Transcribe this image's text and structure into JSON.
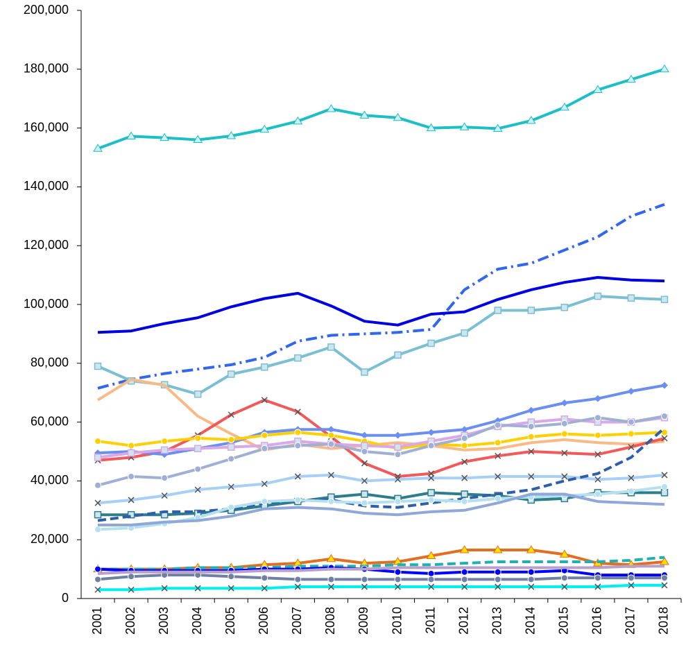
{
  "chart_data": {
    "type": "line",
    "categories": [
      "2001",
      "2002",
      "2003",
      "2004",
      "2005",
      "2006",
      "2007",
      "2008",
      "2009",
      "2010",
      "2011",
      "2012",
      "2013",
      "2014",
      "2015",
      "2016",
      "2017",
      "2018"
    ],
    "ylim": [
      0,
      200000
    ],
    "yticks": [
      0,
      {
        "value": 20000,
        "label": "20,000"
      },
      {
        "value": 40000,
        "label": "40,000"
      },
      {
        "value": 60000,
        "label": "60,000"
      },
      {
        "value": 80000,
        "label": "80,000"
      },
      {
        "value": 100000,
        "label": "100,000"
      },
      {
        "value": 120000,
        "label": "120,000"
      },
      {
        "value": 140000,
        "label": "140,000"
      },
      {
        "value": 160000,
        "label": "160,000"
      },
      {
        "value": 180000,
        "label": "180,000"
      },
      {
        "value": 200000,
        "label": "200,000"
      }
    ],
    "grid": false,
    "series": [
      {
        "color": "#1CBFC6",
        "marker": "triangle",
        "dash": "solid",
        "values": [
          153000,
          157200,
          156700,
          156000,
          157300,
          159500,
          162300,
          166500,
          164300,
          163500,
          160000,
          160300,
          159800,
          162500,
          167000,
          173000,
          176500,
          180000
        ]
      },
      {
        "color": "#3366EE",
        "marker": "none",
        "dash": "dashdot",
        "values": [
          71500,
          74500,
          76500,
          78000,
          79500,
          82000,
          87500,
          89500,
          90000,
          90500,
          91500,
          105000,
          112000,
          114000,
          118500,
          123000,
          130000,
          134000
        ]
      },
      {
        "color": "#0000E0",
        "marker": "none",
        "dash": "solid",
        "values": [
          90500,
          91000,
          93500,
          95500,
          99200,
          102000,
          103800,
          99500,
          94300,
          93000,
          96700,
          97500,
          101700,
          105000,
          107500,
          109200,
          108300,
          108000
        ]
      },
      {
        "color": "#7BBFD2",
        "marker": "square",
        "dash": "solid",
        "values": [
          79000,
          74000,
          72700,
          69500,
          76300,
          78700,
          81800,
          85500,
          77000,
          82800,
          86800,
          90300,
          98000,
          98000,
          99000,
          102800,
          102200,
          101700
        ]
      },
      {
        "color": "#F8BB88",
        "marker": "none",
        "dash": "solid",
        "values": [
          67500,
          74500,
          72500,
          62000,
          56000,
          50500,
          52500,
          51000,
          52000,
          53000,
          52000,
          50500,
          51000,
          53000,
          54000,
          53000,
          52500,
          53500
        ]
      },
      {
        "color": "#F05A5A",
        "marker": "x",
        "dash": "solid",
        "values": [
          47000,
          48000,
          50000,
          55500,
          62500,
          67500,
          63500,
          55000,
          46000,
          41500,
          42500,
          46500,
          48500,
          50000,
          49500,
          49000,
          51500,
          54500
        ]
      },
      {
        "color": "#6A8FF0",
        "marker": "diamond",
        "dash": "solid",
        "values": [
          49500,
          50000,
          49000,
          51000,
          53000,
          56500,
          57500,
          57500,
          55500,
          55500,
          56500,
          57500,
          60500,
          64000,
          66500,
          68000,
          70500,
          72500
        ]
      },
      {
        "color": "#FFD000",
        "marker": "circle",
        "dash": "solid",
        "values": [
          53500,
          52000,
          53500,
          54500,
          54000,
          55500,
          56500,
          55500,
          53500,
          51000,
          52500,
          52000,
          53000,
          55000,
          56000,
          55500,
          56000,
          56500
        ]
      },
      {
        "color": "#D9A8E6",
        "marker": "square",
        "dash": "solid",
        "values": [
          48000,
          49500,
          50500,
          51000,
          51500,
          52000,
          53500,
          52500,
          52000,
          51500,
          53500,
          55500,
          58500,
          60000,
          61000,
          60000,
          60000,
          61500
        ]
      },
      {
        "color": "#A0B0D4",
        "marker": "circle",
        "dash": "solid",
        "values": [
          38500,
          41500,
          41000,
          44000,
          47500,
          51000,
          52000,
          52500,
          50000,
          49000,
          52000,
          54500,
          59000,
          58500,
          59500,
          61500,
          60000,
          62000
        ]
      },
      {
        "color": "#A8CFF5",
        "marker": "x",
        "dash": "solid",
        "values": [
          32500,
          33500,
          35000,
          37000,
          38000,
          39000,
          41500,
          42000,
          40000,
          40500,
          41000,
          41000,
          41500,
          41500,
          41500,
          40500,
          41000,
          42000
        ]
      },
      {
        "color": "#2E7D8C",
        "marker": "square",
        "dash": "solid",
        "values": [
          28500,
          28500,
          28500,
          29000,
          30000,
          31500,
          33000,
          34500,
          35500,
          34000,
          36000,
          35500,
          35000,
          33500,
          34000,
          36000,
          36000,
          36000
        ]
      },
      {
        "color": "#2E5FA8",
        "marker": "none",
        "dash": "dash",
        "values": [
          26500,
          28000,
          29500,
          29500,
          30500,
          32500,
          33500,
          33500,
          31500,
          31000,
          32500,
          34000,
          35500,
          37000,
          40000,
          42500,
          48000,
          58000
        ]
      },
      {
        "color": "#B4E0F0",
        "marker": "circle",
        "dash": "solid",
        "values": [
          23500,
          24000,
          25500,
          27500,
          31000,
          33000,
          33500,
          33000,
          32500,
          33000,
          33500,
          33000,
          34000,
          34500,
          35000,
          35500,
          36500,
          38000
        ]
      },
      {
        "color": "#8FA8D8",
        "marker": "none",
        "dash": "solid",
        "values": [
          25000,
          25000,
          26000,
          26500,
          28000,
          30500,
          31000,
          30500,
          29000,
          28500,
          29500,
          30000,
          32500,
          35500,
          35500,
          33000,
          32500,
          32000
        ]
      },
      {
        "color": "#E07020",
        "marker": "triangle",
        "dash": "solid",
        "values": [
          10000,
          10000,
          10000,
          10500,
          10500,
          11500,
          12000,
          13500,
          12000,
          12500,
          14500,
          16500,
          16500,
          16500,
          15000,
          12000,
          11500,
          12500
        ]
      },
      {
        "color": "#20B0B0",
        "marker": "none",
        "dash": "dash",
        "values": [
          10000,
          10000,
          10000,
          10500,
          10500,
          10500,
          11000,
          11000,
          11000,
          11500,
          11500,
          12000,
          12500,
          12500,
          12500,
          12500,
          13000,
          14000
        ]
      },
      {
        "color": "#0000FF",
        "marker": "circle",
        "dash": "solid",
        "values": [
          10000,
          9500,
          9500,
          9500,
          9500,
          10000,
          10000,
          10500,
          10000,
          9000,
          8500,
          9000,
          9000,
          9000,
          9500,
          8000,
          8000,
          8000
        ]
      },
      {
        "color": "#7080A0",
        "marker": "circle",
        "dash": "solid",
        "values": [
          6500,
          7500,
          8000,
          8000,
          7500,
          7000,
          6500,
          6500,
          6500,
          6500,
          6500,
          6500,
          6500,
          6500,
          7000,
          7000,
          7000,
          7000
        ]
      },
      {
        "color": "#B8A0C8",
        "marker": "none",
        "dash": "solid",
        "values": [
          8500,
          9000,
          9000,
          9000,
          9000,
          9500,
          9500,
          10000,
          10000,
          10500,
          10500,
          10500,
          10500,
          10500,
          10500,
          10500,
          11000,
          11000
        ]
      },
      {
        "color": "#00F0F0",
        "marker": "x",
        "dash": "solid",
        "values": [
          3000,
          3000,
          3500,
          3500,
          3500,
          3500,
          4000,
          4000,
          4000,
          4000,
          4000,
          4000,
          4000,
          4000,
          4000,
          4000,
          4500,
          4500
        ]
      }
    ]
  }
}
